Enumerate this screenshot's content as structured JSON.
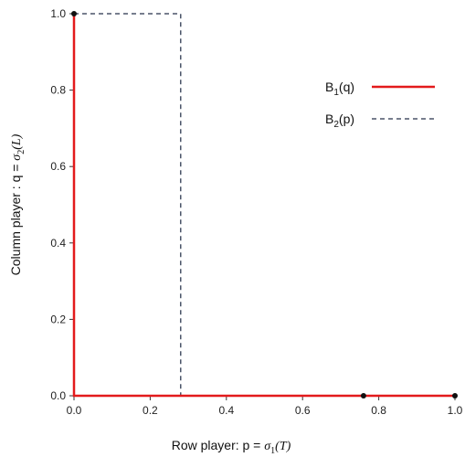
{
  "chart_data": {
    "type": "line",
    "xlabel": "Row player: p = σ1(T)",
    "ylabel": "Column player : q = σ2(L)",
    "xlim": [
      0,
      1
    ],
    "ylim": [
      0,
      1
    ],
    "x_ticks": [
      "0.0",
      "0.2",
      "0.4",
      "0.6",
      "0.8",
      "1.0"
    ],
    "y_ticks": [
      "0.0",
      "0.2",
      "0.4",
      "0.6",
      "0.8",
      "1.0"
    ],
    "grid": false,
    "legend_position": "top-right",
    "series": [
      {
        "name": "B1(q)",
        "color": "#e31a1c",
        "style": "solid",
        "x": [
          0.0,
          0.0,
          1.0
        ],
        "y": [
          1.0,
          0.0,
          0.0
        ]
      },
      {
        "name": "B2(p)",
        "color": "#4a5468",
        "style": "dashed",
        "x": [
          0.0,
          0.28,
          0.28,
          1.0
        ],
        "y": [
          1.0,
          1.0,
          0.0,
          0.0
        ]
      }
    ],
    "points": [
      {
        "x": 0.0,
        "y": 1.0
      },
      {
        "x": 0.76,
        "y": 0.0
      },
      {
        "x": 1.0,
        "y": 0.0
      }
    ],
    "legend": [
      {
        "label": "B",
        "sub": "1",
        "arg": "(q)"
      },
      {
        "label": "B",
        "sub": "2",
        "arg": "(p)"
      }
    ],
    "xlabel_parts": {
      "prefix": "Row player: p = ",
      "sym": "σ",
      "sub": "1",
      "arg": "(T)"
    },
    "ylabel_parts": {
      "prefix": "Column player : q = ",
      "sym": "σ",
      "sub": "2",
      "arg": "(L)"
    }
  }
}
